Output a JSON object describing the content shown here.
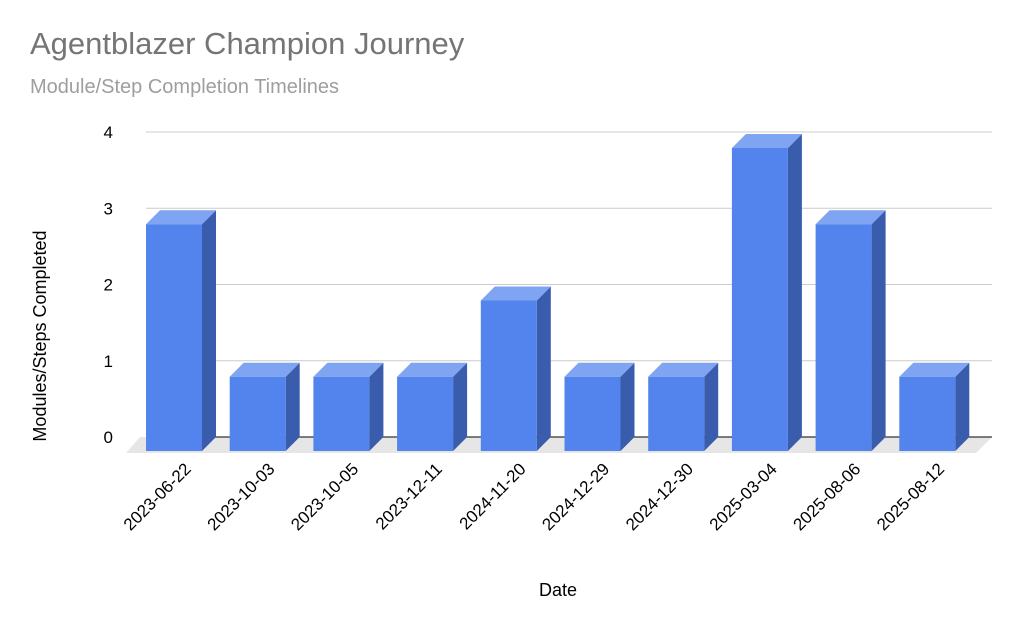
{
  "chart_data": {
    "type": "bar",
    "title": "Agentblazer Champion Journey",
    "subtitle": "Module/Step Completion Timelines",
    "xlabel": "Date",
    "ylabel": "Modules/Steps Completed",
    "categories": [
      "2023-06-22",
      "2023-10-03",
      "2023-10-05",
      "2023-12-11",
      "2024-11-20",
      "2024-12-29",
      "2024-12-30",
      "2025-03-04",
      "2025-08-06",
      "2025-08-12"
    ],
    "values": [
      3,
      1,
      1,
      1,
      2,
      1,
      1,
      4,
      3,
      1
    ],
    "ylim": [
      0,
      4
    ],
    "yticks": [
      0,
      1,
      2,
      3,
      4
    ],
    "grid": true,
    "style": "3d",
    "colors": {
      "bar_front": "#5383ec",
      "bar_side": "#3a5cad",
      "bar_top": "#7fa4f2",
      "grid": "#cccccc",
      "floor": "#e6e6e6",
      "baseline": "#333333"
    }
  }
}
